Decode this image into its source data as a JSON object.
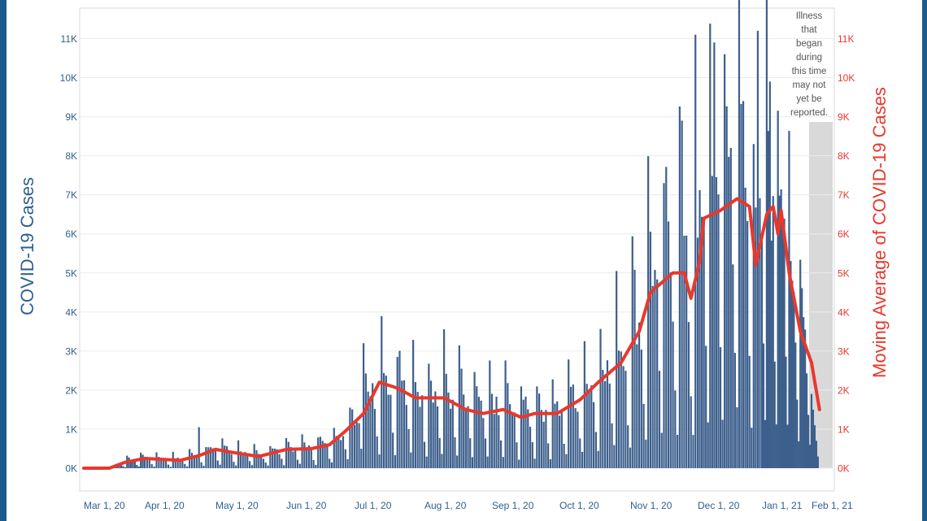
{
  "chart_data": {
    "type": "bar",
    "ylabel": "COVID-19 Cases",
    "y2label": "Moving Average of COVID-19 Cases",
    "ylim": [
      0,
      11500
    ],
    "yticks": [
      "0K",
      "1K",
      "2K",
      "3K",
      "4K",
      "5K",
      "6K",
      "7K",
      "8K",
      "9K",
      "10K",
      "11K"
    ],
    "y2ticks": [
      "0K",
      "1K",
      "2K",
      "3K",
      "4K",
      "5K",
      "6K",
      "7K",
      "8K",
      "9K",
      "10K",
      "11K"
    ],
    "xticks": [
      "Mar 1, 20",
      "Apr 1, 20",
      "May 1, 20",
      "Jun 1, 20",
      "Jul 1, 20",
      "Aug 1, 20",
      "Sep 1, 20",
      "Oct 1, 20",
      "Nov 1, 20",
      "Dec 1, 20",
      "Jan 1, 21",
      "Feb 1, 21"
    ],
    "grid": true,
    "annotation": "Illness\nthat\nbegan\nduring\nthis time\nmay not\nyet be\nreported.",
    "series": [
      {
        "kind": "bar",
        "color": "#3d5f8c",
        "x_start": "2020-03-01",
        "x_end": "2021-02-05",
        "peaks": [
          {
            "date": "2020-04-24",
            "value": 1050
          },
          {
            "date": "2020-07-05",
            "value": 3200
          },
          {
            "date": "2020-07-20",
            "value": 2850
          },
          {
            "date": "2020-08-18",
            "value": 2550
          },
          {
            "date": "2020-10-26",
            "value": 5050
          },
          {
            "date": "2020-11-16",
            "value": 7300
          },
          {
            "date": "2020-11-24",
            "value": 8900
          },
          {
            "date": "2020-11-30",
            "value": 11100
          },
          {
            "date": "2020-12-09",
            "value": 10900
          },
          {
            "date": "2020-12-17",
            "value": 8200
          },
          {
            "date": "2020-12-23",
            "value": 9400
          },
          {
            "date": "2020-12-30",
            "value": 11200
          },
          {
            "date": "2021-01-06",
            "value": 9900
          },
          {
            "date": "2021-01-20",
            "value": 4800
          },
          {
            "date": "2021-01-28",
            "value": 3550
          }
        ]
      },
      {
        "kind": "line",
        "color": "#e8382c",
        "points": [
          {
            "date": "2020-03-01",
            "value": 0
          },
          {
            "date": "2020-03-14",
            "value": 0
          },
          {
            "date": "2020-03-22",
            "value": 150
          },
          {
            "date": "2020-04-01",
            "value": 250
          },
          {
            "date": "2020-04-16",
            "value": 200
          },
          {
            "date": "2020-04-24",
            "value": 320
          },
          {
            "date": "2020-05-01",
            "value": 480
          },
          {
            "date": "2020-05-09",
            "value": 400
          },
          {
            "date": "2020-05-20",
            "value": 300
          },
          {
            "date": "2020-06-01",
            "value": 480
          },
          {
            "date": "2020-06-12",
            "value": 500
          },
          {
            "date": "2020-06-20",
            "value": 600
          },
          {
            "date": "2020-06-27",
            "value": 950
          },
          {
            "date": "2020-07-05",
            "value": 1400
          },
          {
            "date": "2020-07-12",
            "value": 2200
          },
          {
            "date": "2020-07-20",
            "value": 2050
          },
          {
            "date": "2020-07-28",
            "value": 1800
          },
          {
            "date": "2020-08-10",
            "value": 1800
          },
          {
            "date": "2020-08-20",
            "value": 1500
          },
          {
            "date": "2020-08-28",
            "value": 1400
          },
          {
            "date": "2020-09-06",
            "value": 1500
          },
          {
            "date": "2020-09-14",
            "value": 1300
          },
          {
            "date": "2020-09-20",
            "value": 1400
          },
          {
            "date": "2020-09-30",
            "value": 1400
          },
          {
            "date": "2020-10-10",
            "value": 1750
          },
          {
            "date": "2020-10-18",
            "value": 2200
          },
          {
            "date": "2020-10-28",
            "value": 2700
          },
          {
            "date": "2020-11-05",
            "value": 3500
          },
          {
            "date": "2020-11-10",
            "value": 4500
          },
          {
            "date": "2020-11-20",
            "value": 5000
          },
          {
            "date": "2020-11-25",
            "value": 5000
          },
          {
            "date": "2020-11-28",
            "value": 4350
          },
          {
            "date": "2020-12-02",
            "value": 5300
          },
          {
            "date": "2020-12-04",
            "value": 6400
          },
          {
            "date": "2020-12-12",
            "value": 6600
          },
          {
            "date": "2020-12-20",
            "value": 6900
          },
          {
            "date": "2020-12-26",
            "value": 6700
          },
          {
            "date": "2020-12-29",
            "value": 5200
          },
          {
            "date": "2021-01-04",
            "value": 6500
          },
          {
            "date": "2021-01-08",
            "value": 6700
          },
          {
            "date": "2021-01-11",
            "value": 6000
          },
          {
            "date": "2021-01-13",
            "value": 6600
          },
          {
            "date": "2021-01-18",
            "value": 5000
          },
          {
            "date": "2021-01-25",
            "value": 3500
          },
          {
            "date": "2021-02-01",
            "value": 2700
          },
          {
            "date": "2021-02-06",
            "value": 1500
          }
        ]
      }
    ]
  }
}
